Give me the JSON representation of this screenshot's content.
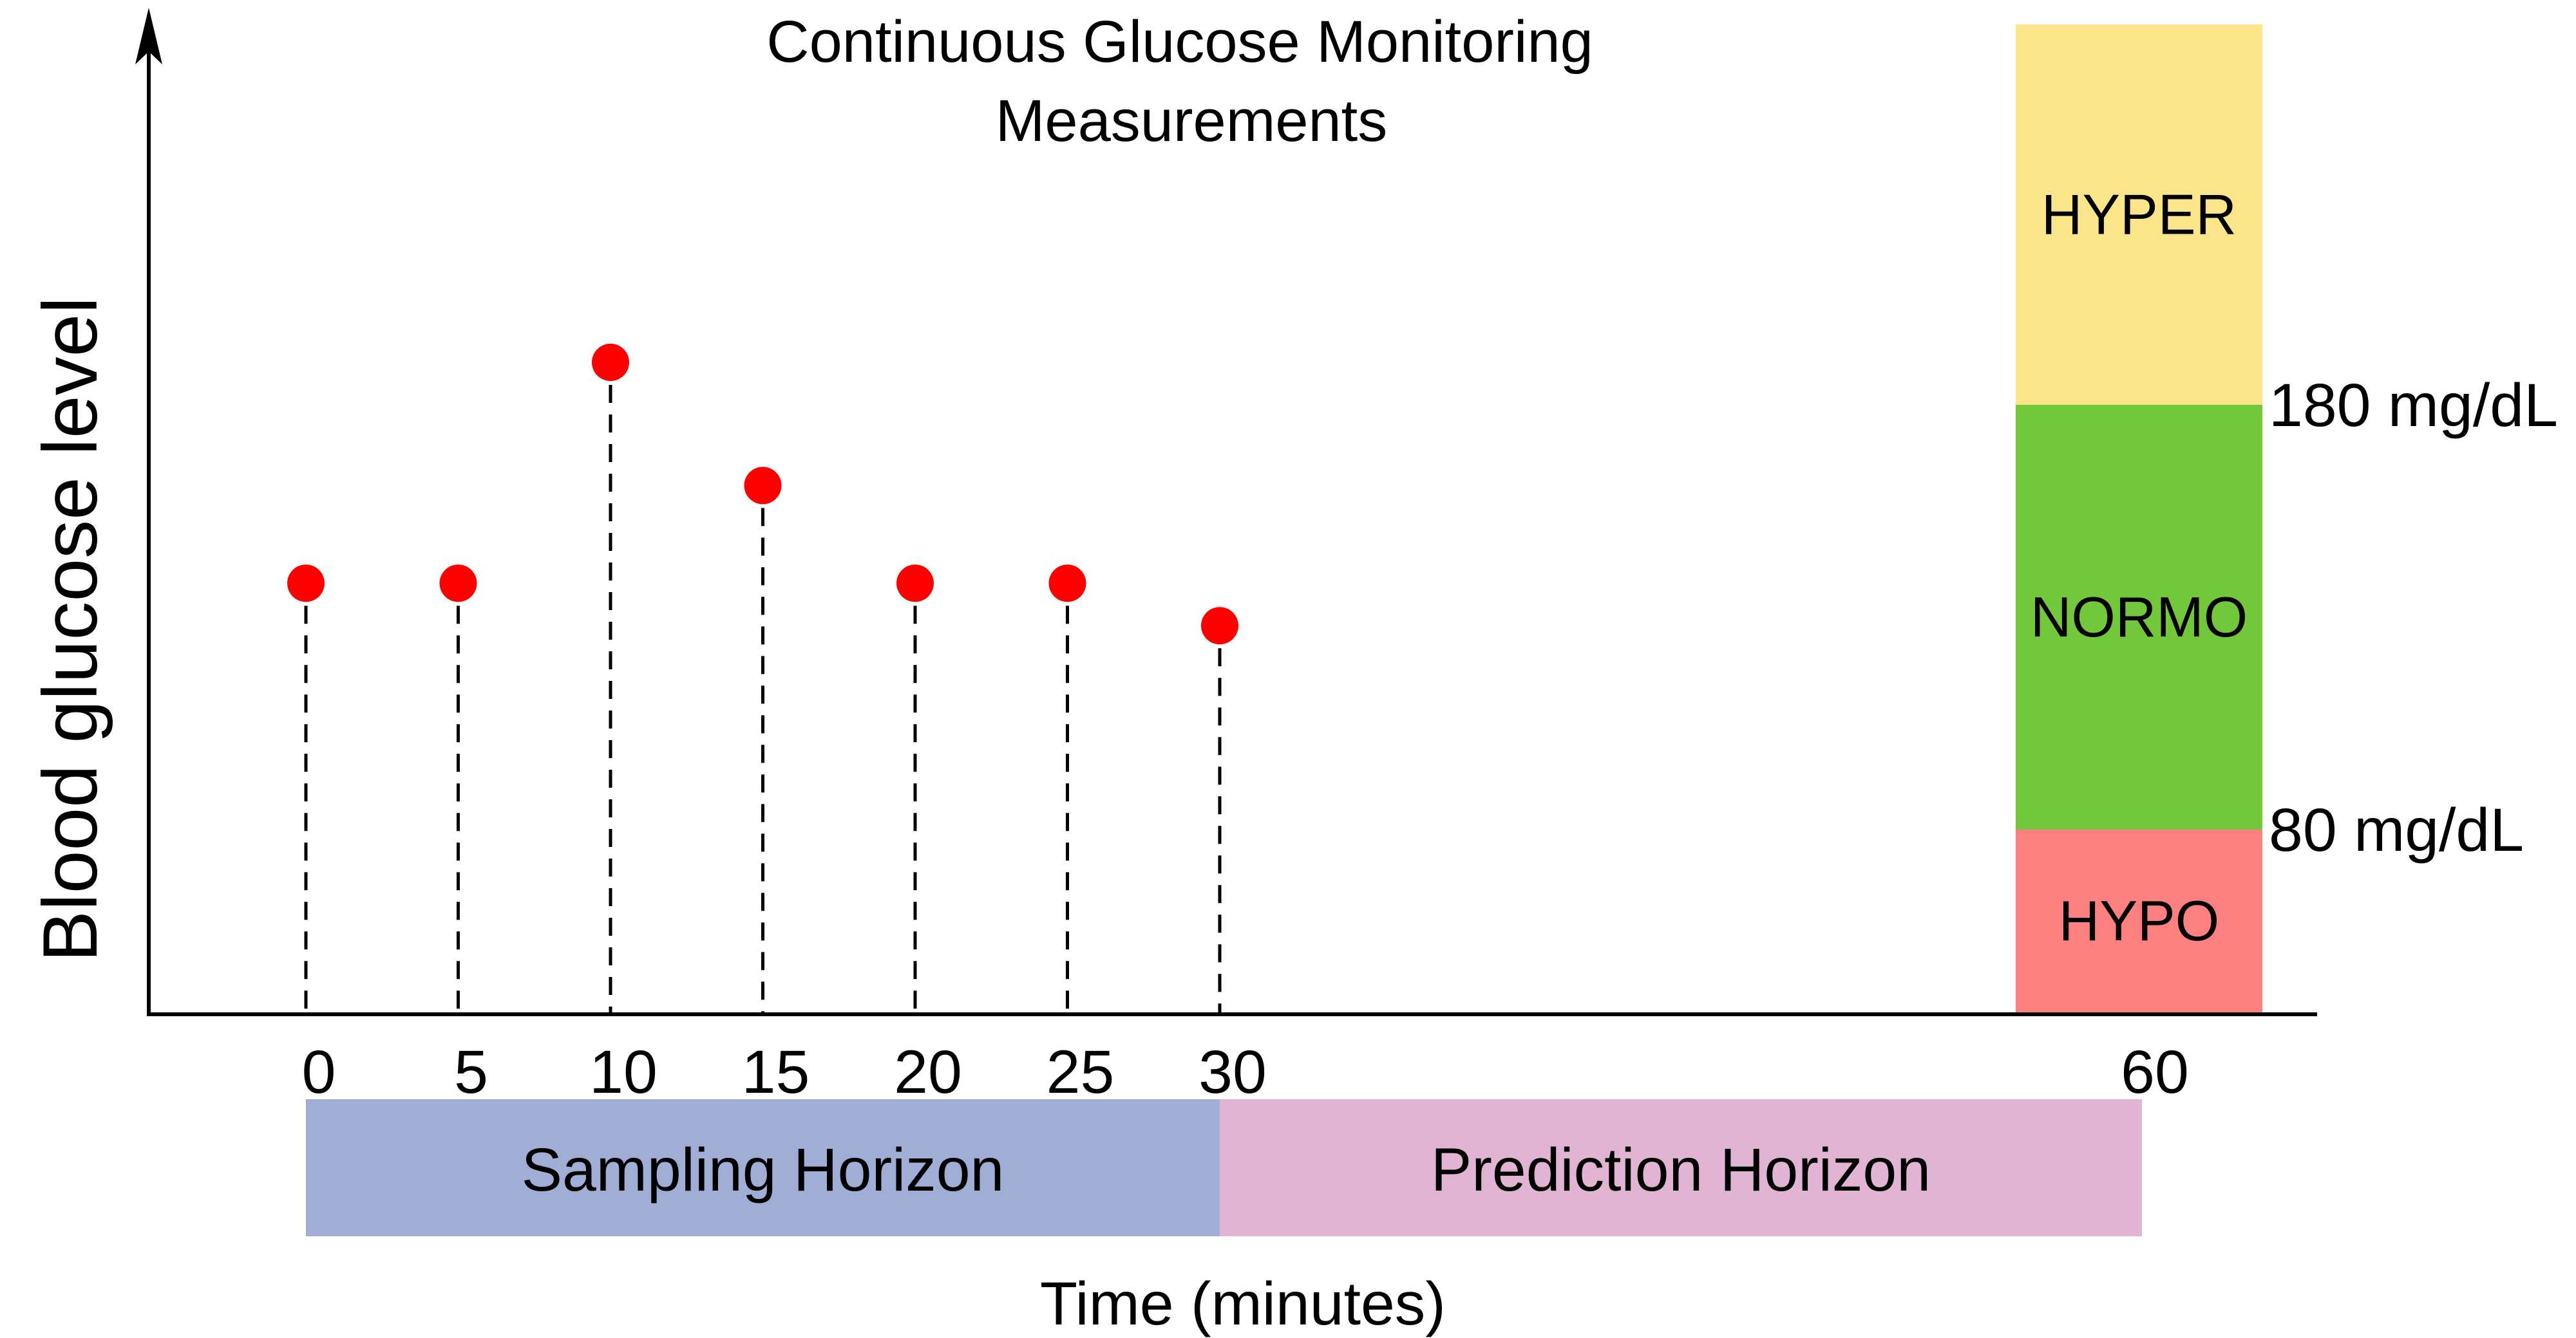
{
  "title_lines": [
    "Continuous Glucose Monitoring",
    "Measurements"
  ],
  "ylabel": "Blood glucose level",
  "xlabel": "Time (minutes)",
  "x_ticks": [
    {
      "value": 0,
      "label": "0"
    },
    {
      "value": 5,
      "label": "5"
    },
    {
      "value": 10,
      "label": "10"
    },
    {
      "value": 15,
      "label": "15"
    },
    {
      "value": 20,
      "label": "20"
    },
    {
      "value": 25,
      "label": "25"
    },
    {
      "value": 30,
      "label": "30"
    },
    {
      "value": 60,
      "label": "60"
    }
  ],
  "horizons": [
    {
      "label": "Sampling Horizon",
      "from": 0,
      "to": 30,
      "color": "#a0aed6"
    },
    {
      "label": "Prediction Horizon",
      "from": 30,
      "to": 60,
      "color": "#e1b4d4"
    }
  ],
  "zones": [
    {
      "label": "HYPER",
      "color": "#fbe58a"
    },
    {
      "label": "NORMO",
      "color": "#73c73a"
    },
    {
      "label": "HYPO",
      "color": "#fd8080"
    }
  ],
  "thresholds": [
    "180 mg/dL",
    "80 mg/dL"
  ],
  "point_color": "#ff0000",
  "chart_data": {
    "type": "scatter",
    "title": "Continuous Glucose Monitoring Measurements",
    "xlabel": "Time (minutes)",
    "ylabel": "Blood glucose level",
    "x": [
      0,
      5,
      10,
      15,
      20,
      25,
      30
    ],
    "y": [
      138,
      138,
      190,
      161,
      138,
      138,
      128
    ],
    "y_unit": "mg/dL",
    "x_ticks": [
      0,
      5,
      10,
      15,
      20,
      25,
      30,
      60
    ],
    "zone_thresholds": [
      80,
      180
    ],
    "grid": false
  }
}
